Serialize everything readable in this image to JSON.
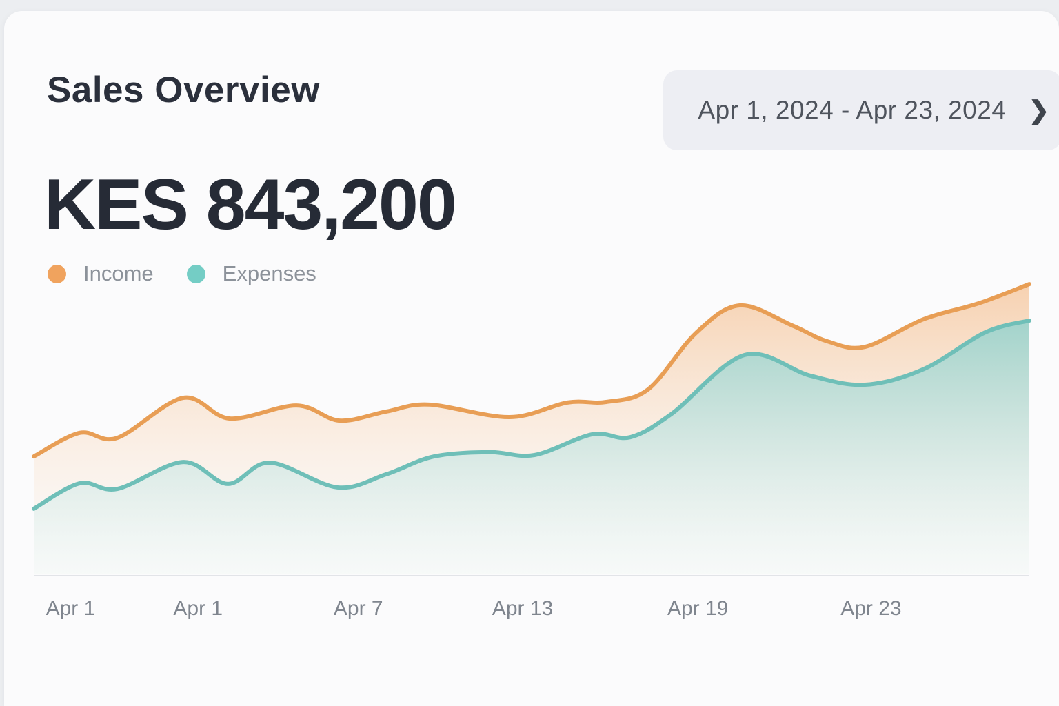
{
  "header": {
    "title": "Sales Overview",
    "date_range": {
      "label": "Apr 1, 2024 - Apr 23, 2024",
      "chevron_icon": "❯"
    }
  },
  "summary": {
    "amount": "KES 843,200"
  },
  "legend": {
    "items": [
      {
        "label": "Income",
        "color": "#F0A35E"
      },
      {
        "label": "Expenses",
        "color": "#74CDC5"
      }
    ]
  },
  "colors": {
    "card_bg": "#FBFBFC",
    "page_bg": "#ECEEF1",
    "title_text": "#2B303C",
    "amount_text": "#262B36",
    "pill_bg": "#EDEEF3",
    "pill_text": "#4F545D",
    "legend_text": "#8C929A",
    "axis_line": "#E2E4E8",
    "tick_text": "#7F858E"
  },
  "chart_data": {
    "type": "area",
    "title": "",
    "xlabel": "",
    "ylabel": "",
    "y_axis_visible": false,
    "grid": false,
    "legend_position": "top-left",
    "value_scale_note": "relative 0-100, no y-axis labels shown in chart",
    "x_axis": {
      "tick_labels": [
        "Apr 1",
        "Apr 1",
        "Apr 7",
        "Apr 13",
        "Apr 19",
        "Apr 23"
      ],
      "tick_positions": [
        0.037,
        0.165,
        0.326,
        0.491,
        0.667,
        0.841
      ]
    },
    "series": [
      {
        "name": "Income",
        "stroke": "#E89E55",
        "stroke_width": 6,
        "gradient": [
          {
            "offset": 0,
            "color": "#F2A765",
            "opacity": 0.5
          },
          {
            "offset": 0.5,
            "color": "#F6C89D",
            "opacity": 0.28
          },
          {
            "offset": 1,
            "color": "#FAE9DA",
            "opacity": 0.08
          }
        ],
        "points": [
          [
            0.0,
            40.4
          ],
          [
            0.046,
            48.5
          ],
          [
            0.084,
            46.8
          ],
          [
            0.15,
            60.5
          ],
          [
            0.197,
            53.4
          ],
          [
            0.264,
            57.9
          ],
          [
            0.307,
            52.7
          ],
          [
            0.354,
            55.8
          ],
          [
            0.397,
            58.2
          ],
          [
            0.478,
            53.9
          ],
          [
            0.536,
            58.9
          ],
          [
            0.575,
            59.1
          ],
          [
            0.617,
            63.4
          ],
          [
            0.665,
            82.7
          ],
          [
            0.709,
            92.2
          ],
          [
            0.762,
            85.3
          ],
          [
            0.797,
            79.9
          ],
          [
            0.835,
            78.0
          ],
          [
            0.894,
            87.5
          ],
          [
            0.949,
            92.9
          ],
          [
            1.0,
            99.5
          ]
        ]
      },
      {
        "name": "Expenses",
        "stroke": "#6FBFB8",
        "stroke_width": 6,
        "gradient": [
          {
            "offset": 0,
            "color": "#9ED3CC",
            "opacity": 0.95
          },
          {
            "offset": 0.45,
            "color": "#C6E4E0",
            "opacity": 0.78
          },
          {
            "offset": 1,
            "color": "#F2F9F8",
            "opacity": 0.45
          }
        ],
        "points": [
          [
            0.0,
            22.5
          ],
          [
            0.046,
            31.2
          ],
          [
            0.084,
            29.3
          ],
          [
            0.15,
            38.5
          ],
          [
            0.195,
            31.0
          ],
          [
            0.237,
            38.3
          ],
          [
            0.305,
            29.8
          ],
          [
            0.354,
            34.3
          ],
          [
            0.402,
            40.4
          ],
          [
            0.458,
            41.9
          ],
          [
            0.503,
            40.9
          ],
          [
            0.561,
            48.0
          ],
          [
            0.599,
            47.0
          ],
          [
            0.641,
            55.1
          ],
          [
            0.714,
            75.2
          ],
          [
            0.78,
            68.1
          ],
          [
            0.835,
            65.0
          ],
          [
            0.894,
            70.4
          ],
          [
            0.956,
            83.0
          ],
          [
            1.0,
            87.0
          ]
        ]
      }
    ]
  }
}
